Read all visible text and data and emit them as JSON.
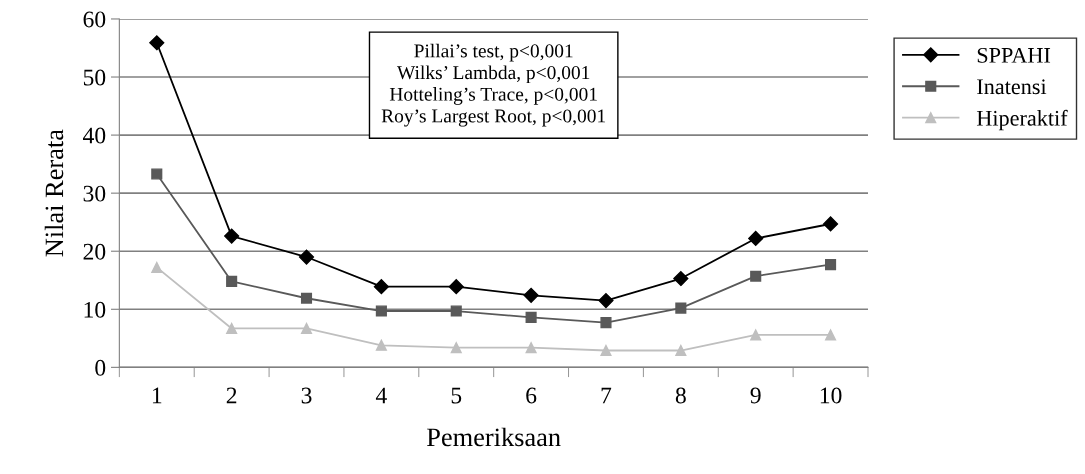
{
  "chart_data": {
    "type": "line",
    "xlabel": "Pemeriksaan",
    "ylabel": "Nilai Rerata",
    "categories": [
      "1",
      "2",
      "3",
      "4",
      "5",
      "6",
      "7",
      "8",
      "9",
      "10"
    ],
    "series": [
      {
        "name": "SPPAHI",
        "color": "#000000",
        "marker": "diamond",
        "values": [
          55.9,
          22.6,
          19.0,
          13.9,
          13.9,
          12.4,
          11.5,
          15.3,
          22.2,
          24.7
        ]
      },
      {
        "name": "Inatensi",
        "color": "#595959",
        "marker": "square",
        "values": [
          33.3,
          14.8,
          11.9,
          9.7,
          9.7,
          8.6,
          7.7,
          10.2,
          15.7,
          17.7
        ]
      },
      {
        "name": "Hiperaktif",
        "color": "#bfbfbf",
        "marker": "triangle",
        "values": [
          17.2,
          6.7,
          6.7,
          3.8,
          3.4,
          3.4,
          2.9,
          2.9,
          5.6,
          5.6
        ]
      }
    ],
    "ylim": [
      0,
      60
    ],
    "yticks": [
      0,
      10,
      20,
      30,
      40,
      50,
      60
    ],
    "grid": "y",
    "legend": "right",
    "annotations": [
      "Pillai’s test, p<0,001\nWilks’ Lambda, p<0,001\nHotteling’s Trace, p<0,001\nRoy’s Largest Root, p<0,001"
    ]
  }
}
